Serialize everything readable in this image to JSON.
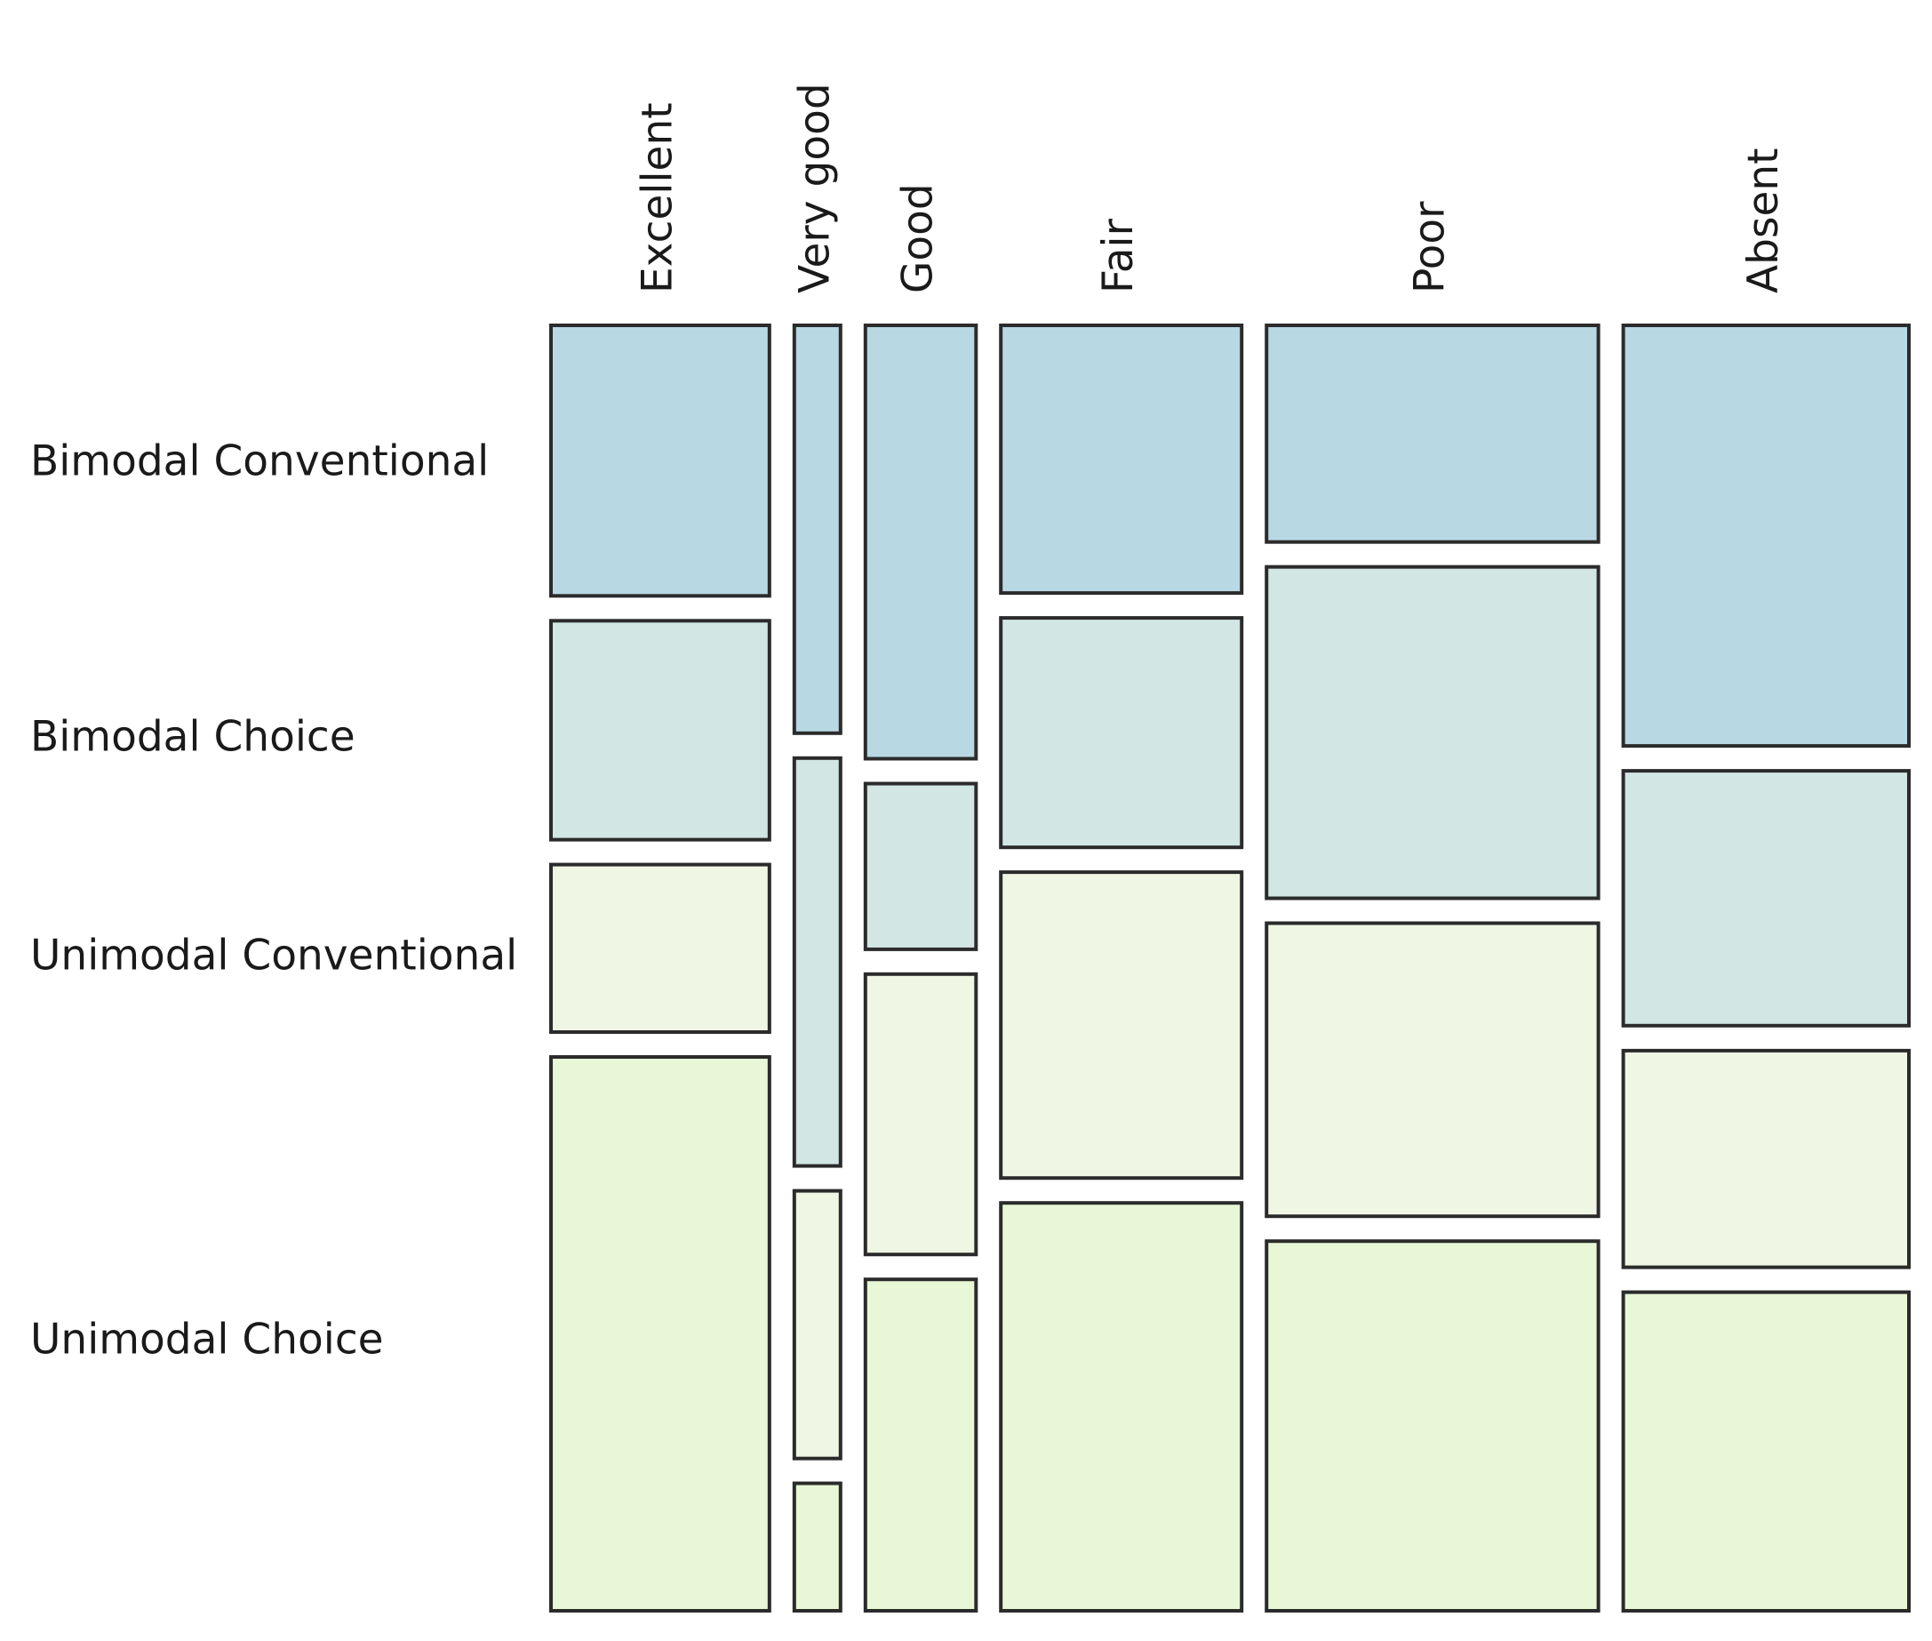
{
  "chart_data": {
    "type": "mosaic",
    "title": "",
    "columns": [
      "Excellent",
      "Very good",
      "Good",
      "Fair",
      "Poor",
      "Absent"
    ],
    "rows": [
      "Bimodal Conventional",
      "Bimodal Choice",
      "Unimodal Conventional",
      "Unimodal Choice"
    ],
    "column_share": [
      0.156,
      0.033,
      0.079,
      0.172,
      0.237,
      0.204
    ],
    "row_share": {
      "Excellent": [
        0.21,
        0.17,
        0.13,
        0.43
      ],
      "Very good": [
        0.32,
        0.32,
        0.21,
        0.1
      ],
      "Good": [
        0.34,
        0.13,
        0.22,
        0.26
      ],
      "Fair": [
        0.21,
        0.18,
        0.24,
        0.32
      ],
      "Poor": [
        0.17,
        0.26,
        0.23,
        0.29
      ],
      "Absent": [
        0.33,
        0.2,
        0.17,
        0.25
      ]
    },
    "colors": {
      "Bimodal Conventional": "#b8d8e4",
      "Bimodal Choice": "#d2e6e4",
      "Unimodal Conventional": "#eff6e4",
      "Unimodal Choice": "#e8f7d5"
    },
    "legend": "none",
    "grid": false
  }
}
